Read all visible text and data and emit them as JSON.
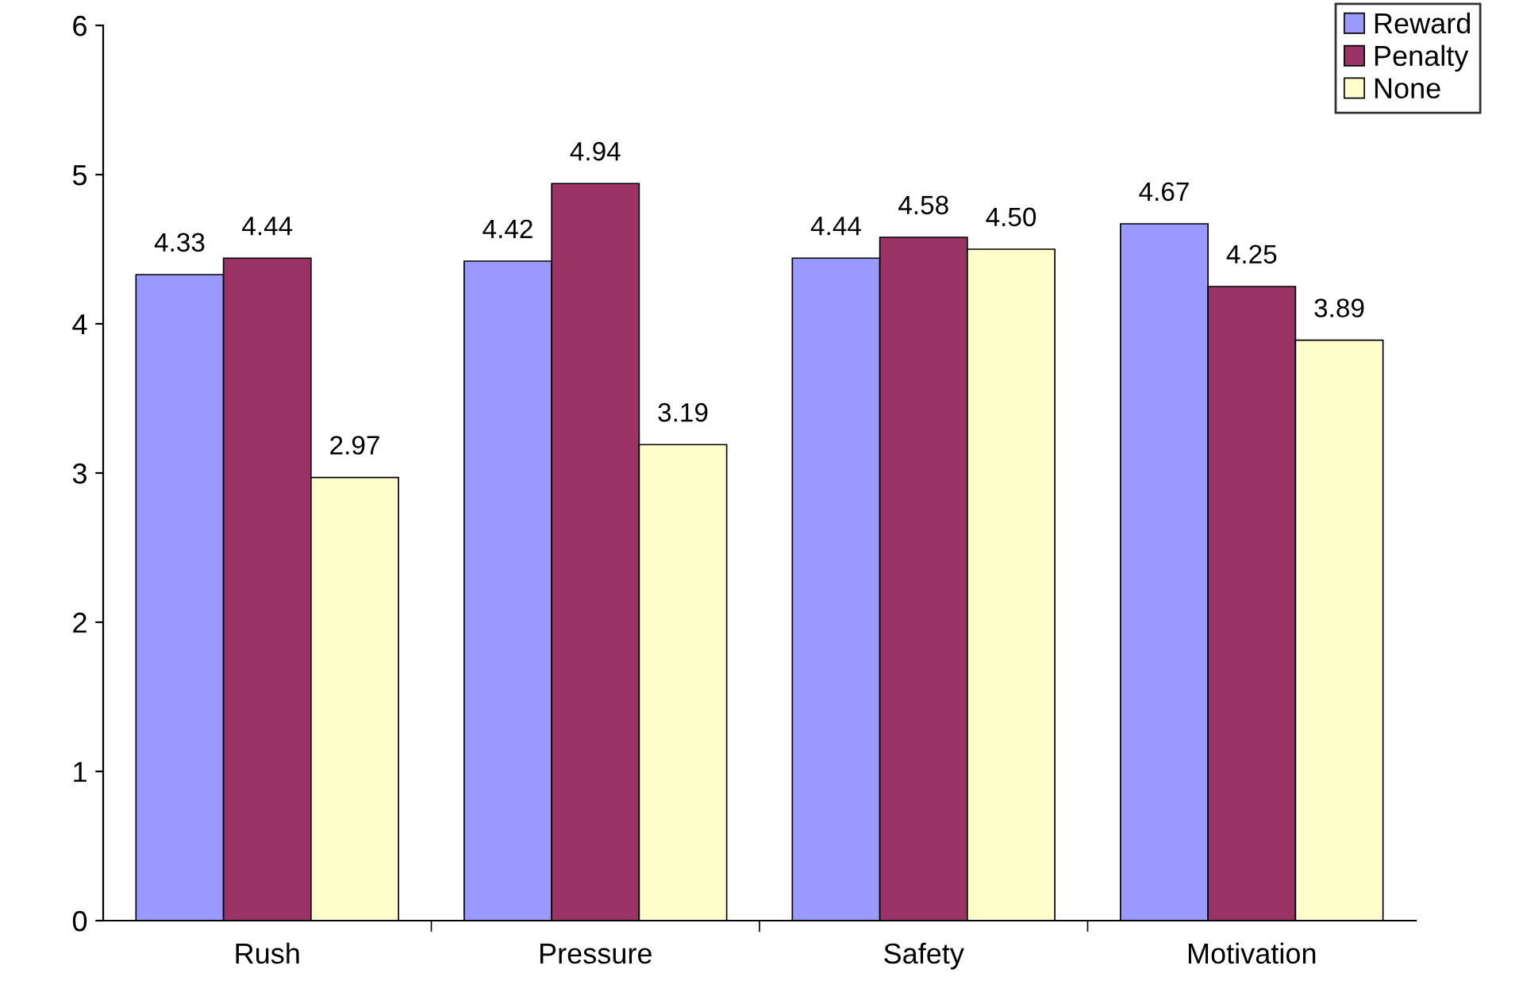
{
  "chart_data": {
    "type": "bar",
    "categories": [
      "Rush",
      "Pressure",
      "Safety",
      "Motivation"
    ],
    "series": [
      {
        "name": "Reward",
        "color": "#9999ff",
        "values": [
          4.33,
          4.42,
          4.44,
          4.67
        ],
        "value_labels": [
          "4.33",
          "4.42",
          "4.44",
          "4.67"
        ]
      },
      {
        "name": "Penalty",
        "color": "#993366",
        "values": [
          4.44,
          4.94,
          4.58,
          4.25
        ],
        "value_labels": [
          "4.44",
          "4.94",
          "4.58",
          "4.25"
        ]
      },
      {
        "name": "None",
        "color": "#ffffcc",
        "values": [
          2.97,
          3.19,
          4.5,
          3.89
        ],
        "value_labels": [
          "2.97",
          "3.19",
          "4.50",
          "3.89"
        ]
      }
    ],
    "ylim": [
      0,
      6
    ],
    "yticks": [
      0,
      1,
      2,
      3,
      4,
      5,
      6
    ],
    "grid": false,
    "legend": "top right"
  }
}
